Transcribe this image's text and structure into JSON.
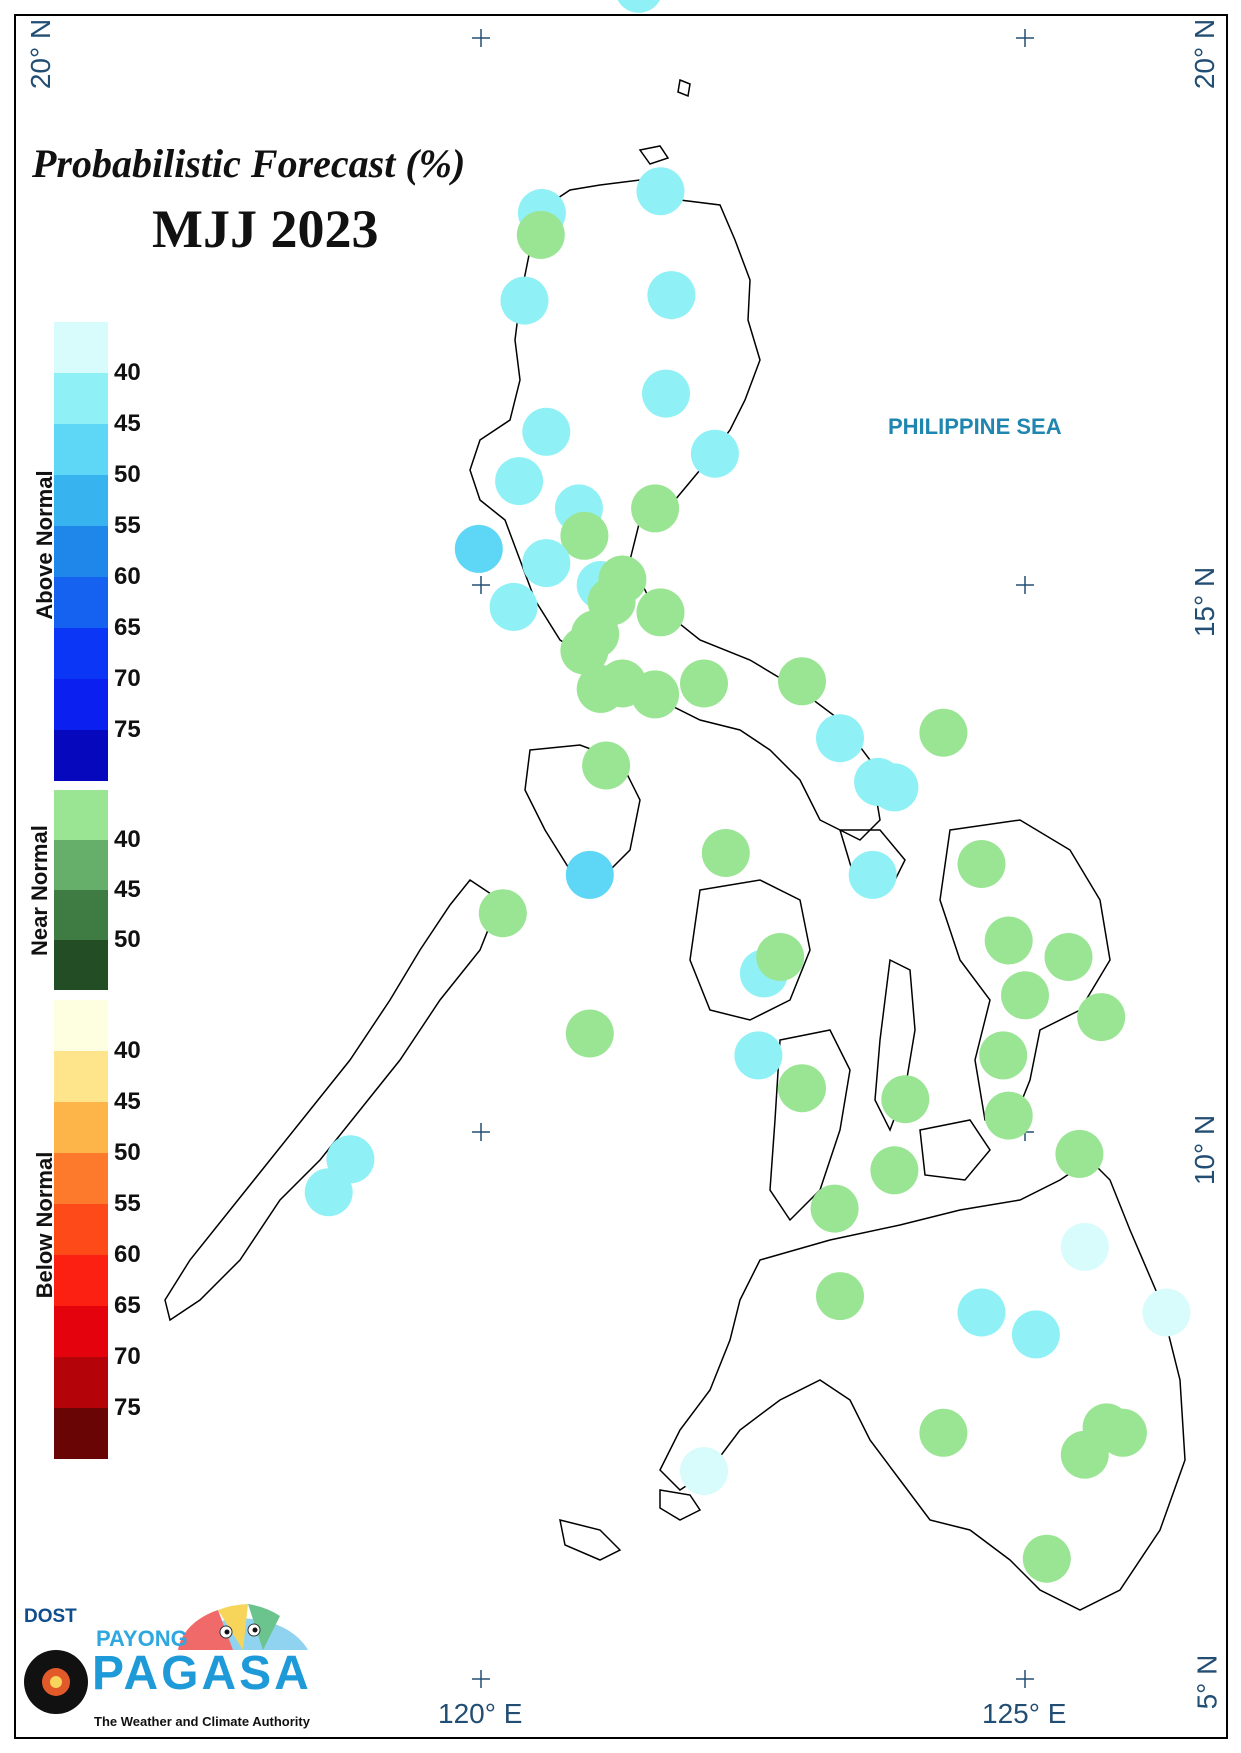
{
  "map": {
    "title": "Probabilistic Forecast (%)",
    "period": "MJJ 2023",
    "sea_label": "PHILIPPINE SEA",
    "lat_labels": [
      "20° N",
      "15° N",
      "10° N",
      "5° N"
    ],
    "lon_labels": [
      "120° E",
      "125° E"
    ]
  },
  "legend": {
    "above_normal": {
      "label": "Above Normal",
      "ticks": [
        "40",
        "45",
        "50",
        "55",
        "60",
        "65",
        "70",
        "75"
      ],
      "colors": [
        "#d8fcfb",
        "#8ff1f6",
        "#5ed6f5",
        "#37b4ef",
        "#1f87ea",
        "#1561f0",
        "#0b36f5",
        "#0b1ff1",
        "#0608bd"
      ]
    },
    "near_normal": {
      "label": "Near Normal",
      "ticks": [
        "40",
        "45",
        "50"
      ],
      "colors": [
        "#9ae594",
        "#66af6a",
        "#3e7c44",
        "#234d24"
      ]
    },
    "below_normal": {
      "label": "Below Normal",
      "ticks": [
        "40",
        "45",
        "50",
        "55",
        "60",
        "65",
        "70",
        "75"
      ],
      "colors": [
        "#fefee0",
        "#fee48a",
        "#fdb54a",
        "#fd7a2c",
        "#fd4a18",
        "#fb2011",
        "#e4030d",
        "#b5030a",
        "#6a0505"
      ]
    }
  },
  "stations": {
    "colors": {
      "above_40": "#d8fcfb",
      "above_45": "#8ff1f6",
      "above_50": "#5ed6f5",
      "near_40": "#9ae594"
    },
    "points": [
      {
        "lon": 121.45,
        "lat": 20.45,
        "category": "above_45"
      },
      {
        "lon": 121.65,
        "lat": 18.6,
        "category": "above_45"
      },
      {
        "lon": 120.56,
        "lat": 18.4,
        "category": "above_45"
      },
      {
        "lon": 120.55,
        "lat": 18.2,
        "category": "near_40"
      },
      {
        "lon": 120.4,
        "lat": 17.6,
        "category": "above_45"
      },
      {
        "lon": 121.75,
        "lat": 17.65,
        "category": "above_45"
      },
      {
        "lon": 121.7,
        "lat": 16.75,
        "category": "above_45"
      },
      {
        "lon": 120.6,
        "lat": 16.4,
        "category": "above_45"
      },
      {
        "lon": 122.15,
        "lat": 16.2,
        "category": "above_45"
      },
      {
        "lon": 120.35,
        "lat": 15.95,
        "category": "above_45"
      },
      {
        "lon": 120.9,
        "lat": 15.7,
        "category": "above_45"
      },
      {
        "lon": 121.6,
        "lat": 15.7,
        "category": "near_40"
      },
      {
        "lon": 120.95,
        "lat": 15.45,
        "category": "near_40"
      },
      {
        "lon": 119.98,
        "lat": 15.33,
        "category": "above_50"
      },
      {
        "lon": 120.6,
        "lat": 15.2,
        "category": "above_45"
      },
      {
        "lon": 121.1,
        "lat": 15.0,
        "category": "above_45"
      },
      {
        "lon": 121.3,
        "lat": 15.05,
        "category": "near_40"
      },
      {
        "lon": 121.2,
        "lat": 14.85,
        "category": "near_40"
      },
      {
        "lon": 120.3,
        "lat": 14.8,
        "category": "above_45"
      },
      {
        "lon": 121.65,
        "lat": 14.75,
        "category": "near_40"
      },
      {
        "lon": 121.05,
        "lat": 14.55,
        "category": "near_40"
      },
      {
        "lon": 120.95,
        "lat": 14.4,
        "category": "near_40"
      },
      {
        "lon": 121.1,
        "lat": 14.05,
        "category": "near_40"
      },
      {
        "lon": 121.3,
        "lat": 14.1,
        "category": "near_40"
      },
      {
        "lon": 121.6,
        "lat": 14.0,
        "category": "near_40"
      },
      {
        "lon": 122.05,
        "lat": 14.1,
        "category": "near_40"
      },
      {
        "lon": 122.95,
        "lat": 14.12,
        "category": "near_40"
      },
      {
        "lon": 123.3,
        "lat": 13.6,
        "category": "above_45"
      },
      {
        "lon": 124.25,
        "lat": 13.65,
        "category": "near_40"
      },
      {
        "lon": 123.65,
        "lat": 13.2,
        "category": "above_45"
      },
      {
        "lon": 123.8,
        "lat": 13.15,
        "category": "above_45"
      },
      {
        "lon": 121.15,
        "lat": 13.35,
        "category": "near_40"
      },
      {
        "lon": 122.25,
        "lat": 12.55,
        "category": "near_40"
      },
      {
        "lon": 123.6,
        "lat": 12.35,
        "category": "above_45"
      },
      {
        "lon": 124.6,
        "lat": 12.45,
        "category": "near_40"
      },
      {
        "lon": 121.0,
        "lat": 12.35,
        "category": "above_50"
      },
      {
        "lon": 120.2,
        "lat": 12.0,
        "category": "near_40"
      },
      {
        "lon": 124.85,
        "lat": 11.75,
        "category": "near_40"
      },
      {
        "lon": 125.4,
        "lat": 11.6,
        "category": "near_40"
      },
      {
        "lon": 122.6,
        "lat": 11.45,
        "category": "above_45"
      },
      {
        "lon": 122.75,
        "lat": 11.6,
        "category": "near_40"
      },
      {
        "lon": 125.0,
        "lat": 11.25,
        "category": "near_40"
      },
      {
        "lon": 125.7,
        "lat": 11.05,
        "category": "near_40"
      },
      {
        "lon": 121.0,
        "lat": 10.9,
        "category": "near_40"
      },
      {
        "lon": 122.55,
        "lat": 10.7,
        "category": "above_45"
      },
      {
        "lon": 124.8,
        "lat": 10.7,
        "category": "near_40"
      },
      {
        "lon": 122.95,
        "lat": 10.4,
        "category": "near_40"
      },
      {
        "lon": 123.9,
        "lat": 10.3,
        "category": "near_40"
      },
      {
        "lon": 124.85,
        "lat": 10.15,
        "category": "near_40"
      },
      {
        "lon": 125.5,
        "lat": 9.8,
        "category": "near_40"
      },
      {
        "lon": 118.8,
        "lat": 9.75,
        "category": "above_45"
      },
      {
        "lon": 118.6,
        "lat": 9.45,
        "category": "above_45"
      },
      {
        "lon": 123.8,
        "lat": 9.65,
        "category": "near_40"
      },
      {
        "lon": 123.25,
        "lat": 9.3,
        "category": "near_40"
      },
      {
        "lon": 125.55,
        "lat": 8.95,
        "category": "above_40"
      },
      {
        "lon": 123.3,
        "lat": 8.5,
        "category": "near_40"
      },
      {
        "lon": 124.6,
        "lat": 8.35,
        "category": "above_45"
      },
      {
        "lon": 125.1,
        "lat": 8.15,
        "category": "above_45"
      },
      {
        "lon": 126.3,
        "lat": 8.35,
        "category": "above_40"
      },
      {
        "lon": 124.25,
        "lat": 7.25,
        "category": "near_40"
      },
      {
        "lon": 125.75,
        "lat": 7.3,
        "category": "near_40"
      },
      {
        "lon": 125.9,
        "lat": 7.25,
        "category": "near_40"
      },
      {
        "lon": 125.55,
        "lat": 7.05,
        "category": "near_40"
      },
      {
        "lon": 122.05,
        "lat": 6.9,
        "category": "above_40"
      },
      {
        "lon": 125.2,
        "lat": 6.1,
        "category": "near_40"
      }
    ]
  },
  "logo": {
    "agency": "DOST",
    "brand_top": "PAYONG",
    "brand_main": "PAGASA",
    "tagline": "The Weather and Climate Authority"
  }
}
